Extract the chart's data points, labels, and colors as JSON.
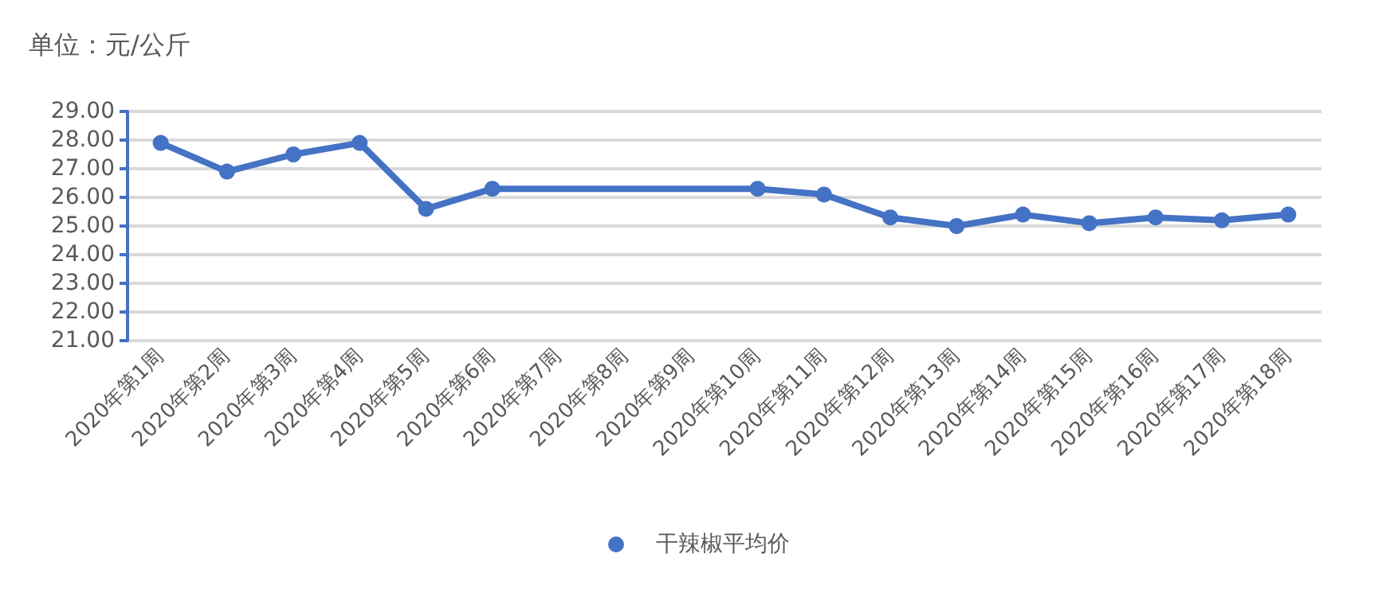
{
  "chart_data": {
    "type": "line",
    "ylabel": "单位：元/公斤",
    "categories": [
      "2020年第1周",
      "2020年第2周",
      "2020年第3周",
      "2020年第4周",
      "2020年第5周",
      "2020年第6周",
      "2020年第7周",
      "2020年第8周",
      "2020年第9周",
      "2020年第10周",
      "2020年第11周",
      "2020年第12周",
      "2020年第13周",
      "2020年第14周",
      "2020年第15周",
      "2020年第16周",
      "2020年第17周",
      "2020年第18周"
    ],
    "series": [
      {
        "name": "干辣椒平均价",
        "color": "#4472c4",
        "values": [
          27.9,
          26.9,
          27.5,
          27.9,
          25.6,
          26.3,
          null,
          null,
          null,
          26.3,
          26.1,
          25.3,
          25.0,
          25.4,
          25.1,
          25.3,
          25.2,
          25.4
        ]
      }
    ],
    "ylim": [
      21,
      29
    ],
    "yticks": [
      {
        "value": 21,
        "label": "21.00"
      },
      {
        "value": 22,
        "label": "22.00"
      },
      {
        "value": 23,
        "label": "23.00"
      },
      {
        "value": 24,
        "label": "24.00"
      },
      {
        "value": 25,
        "label": "25.00"
      },
      {
        "value": 26,
        "label": "26.00"
      },
      {
        "value": 27,
        "label": "27.00"
      },
      {
        "value": 28,
        "label": "28.00"
      },
      {
        "value": 29,
        "label": "29.00"
      }
    ],
    "grid": "y",
    "legend": "bottom",
    "marker": "circle",
    "line_style": "solid"
  }
}
